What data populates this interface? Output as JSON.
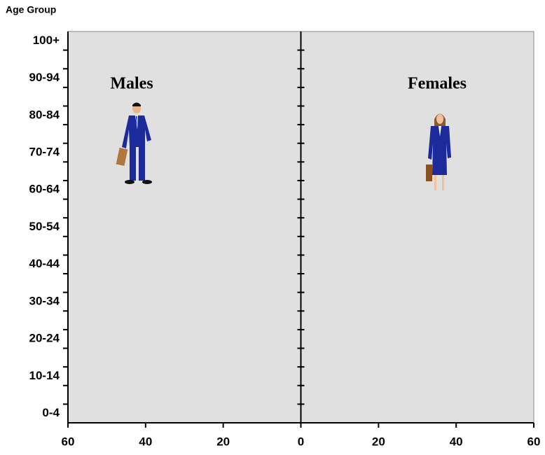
{
  "chart_data": {
    "type": "pyramid",
    "y_label": "Age Group",
    "annotations": [
      "Males",
      "Females"
    ],
    "categories": [
      "0-4",
      null,
      "10-14",
      null,
      "20-24",
      null,
      "30-34",
      null,
      "40-44",
      null,
      "50-54",
      null,
      "60-64",
      null,
      "70-74",
      null,
      "80-84",
      null,
      "90-94",
      null,
      "100+"
    ],
    "xlim": [
      -60,
      60
    ],
    "xticks": [
      {
        "value": -60,
        "label": "60"
      },
      {
        "value": -40,
        "label": "40"
      },
      {
        "value": -20,
        "label": "20"
      },
      0,
      20,
      40,
      60
    ],
    "background": "#e0e0e0"
  }
}
